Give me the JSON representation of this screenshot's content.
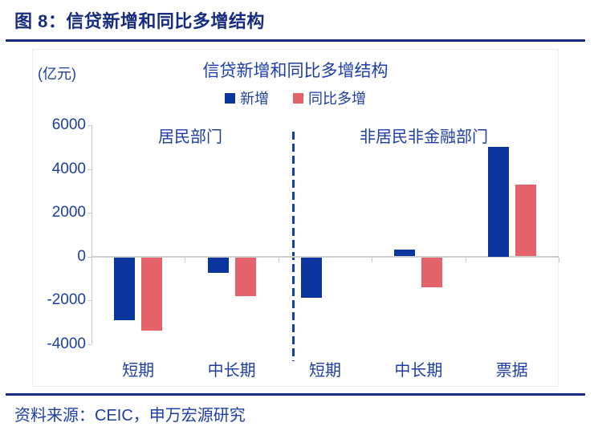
{
  "header": {
    "title": "图 8：信贷新增和同比多增结构"
  },
  "footer": {
    "source": "资料来源：CEIC，申万宏源研究"
  },
  "colors": {
    "header_navy": "#152c80",
    "text_blue": "#1c3ea6",
    "bar_blue": "#0a359c",
    "bar_red": "#e4636b",
    "axis_gray": "#c9c9c9",
    "divider_blue": "#1040a0"
  },
  "chart_data": {
    "type": "bar",
    "title": "信贷新增和同比多增结构",
    "unit_label": "(亿元)",
    "categories": [
      "短期",
      "中长期",
      "短期",
      "中长期",
      "票据"
    ],
    "section_labels": [
      {
        "label": "居民部门",
        "from": 0,
        "to": 1
      },
      {
        "label": "非居民非金融部门",
        "from": 2,
        "to": 4
      }
    ],
    "series": [
      {
        "name": "新增",
        "values": [
          -2900,
          -750,
          -1900,
          300,
          5000
        ]
      },
      {
        "name": "同比多增",
        "values": [
          -3400,
          -1800,
          0,
          -1400,
          3300
        ]
      }
    ],
    "yticks": [
      6000,
      4000,
      2000,
      0,
      -2000,
      -4000
    ],
    "ylim": [
      -4000,
      6000
    ],
    "legend_position": "top",
    "grid": false,
    "section_divider_between": [
      1,
      2
    ]
  }
}
